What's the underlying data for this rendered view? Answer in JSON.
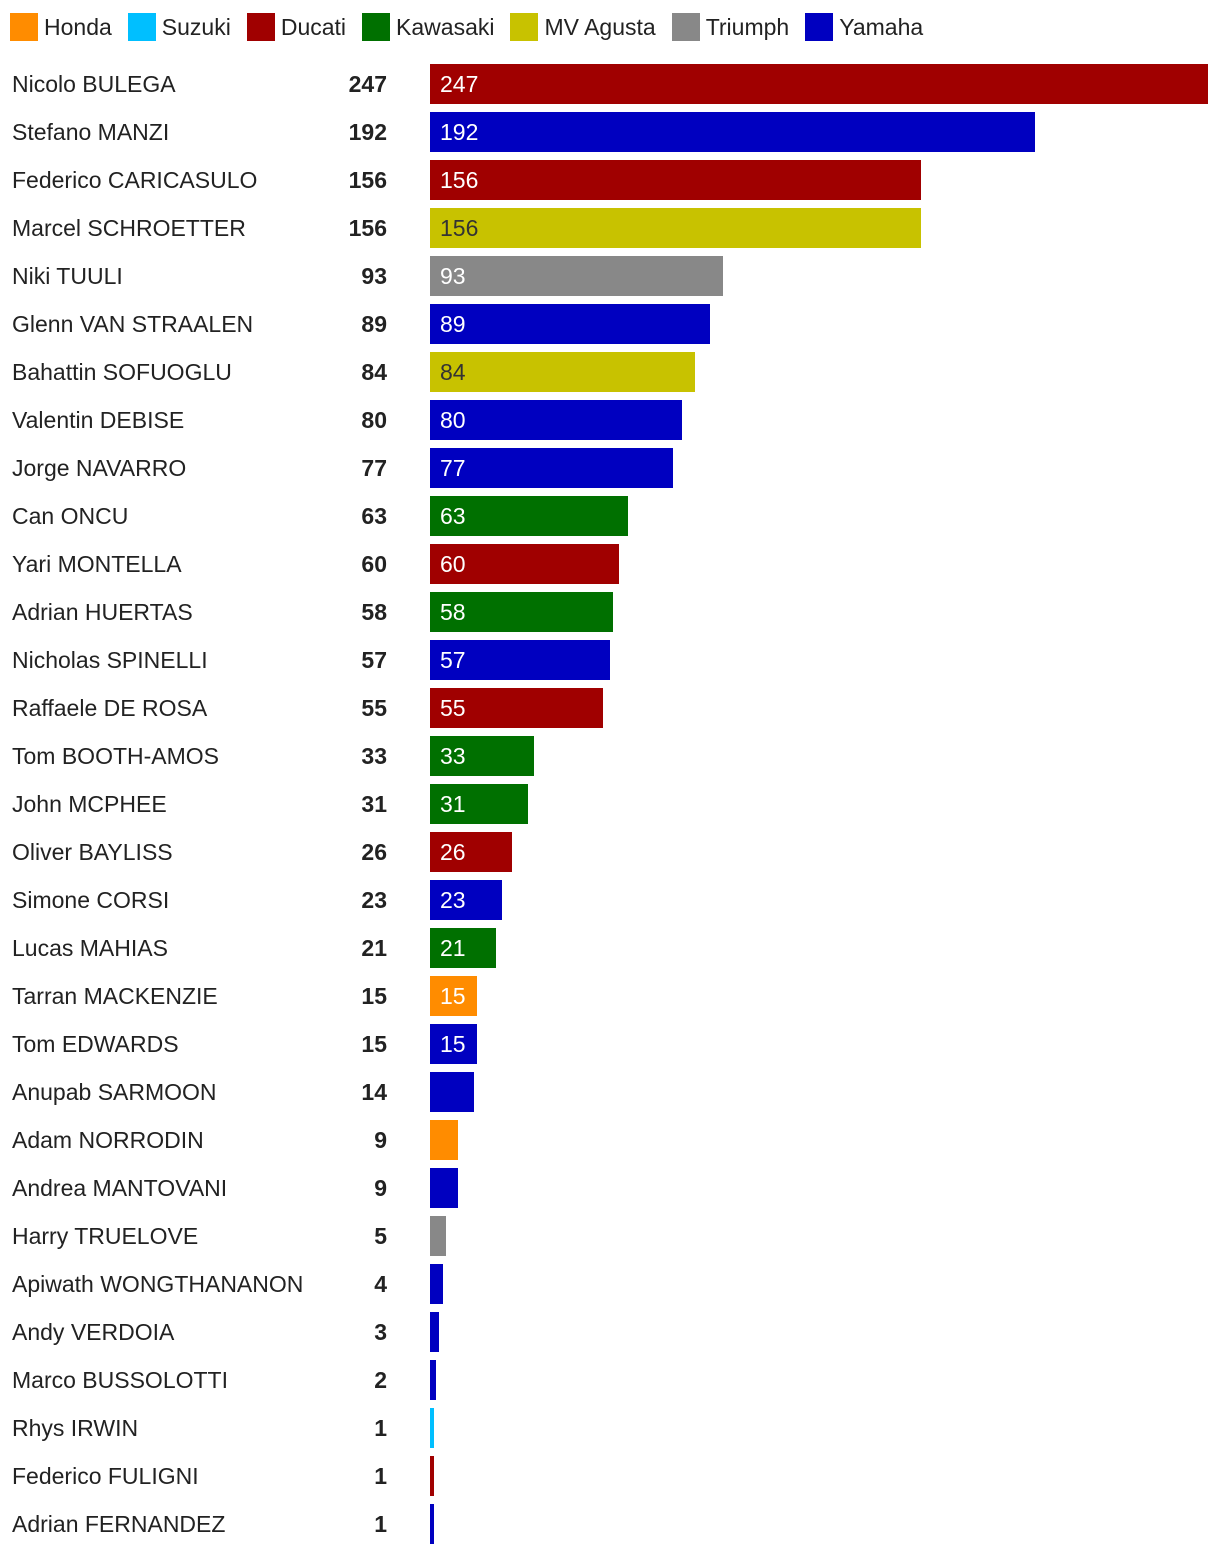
{
  "chart_data": {
    "type": "bar",
    "orientation": "horizontal",
    "manufacturers": [
      {
        "name": "Honda",
        "color": "#ff8c00"
      },
      {
        "name": "Suzuki",
        "color": "#00bfff"
      },
      {
        "name": "Ducati",
        "color": "#a00000"
      },
      {
        "name": "Kawasaki",
        "color": "#007000"
      },
      {
        "name": "MV Agusta",
        "color": "#c8c200"
      },
      {
        "name": "Triumph",
        "color": "#888888"
      },
      {
        "name": "Yamaha",
        "color": "#0000c0"
      }
    ],
    "legend_position": "top-left",
    "rows": [
      {
        "name": "Nicolo BULEGA",
        "points": 247,
        "manufacturer": "Ducati",
        "label": "247"
      },
      {
        "name": "Stefano MANZI",
        "points": 192,
        "manufacturer": "Yamaha",
        "label": "192"
      },
      {
        "name": "Federico CARICASULO",
        "points": 156,
        "manufacturer": "Ducati",
        "label": "156"
      },
      {
        "name": "Marcel SCHROETTER",
        "points": 156,
        "manufacturer": "MV Agusta",
        "label": "156"
      },
      {
        "name": "Niki TUULI",
        "points": 93,
        "manufacturer": "Triumph",
        "label": "93"
      },
      {
        "name": "Glenn VAN STRAALEN",
        "points": 89,
        "manufacturer": "Yamaha",
        "label": "89"
      },
      {
        "name": "Bahattin SOFUOGLU",
        "points": 84,
        "manufacturer": "MV Agusta",
        "label": "84"
      },
      {
        "name": "Valentin DEBISE",
        "points": 80,
        "manufacturer": "Yamaha",
        "label": "80"
      },
      {
        "name": "Jorge NAVARRO",
        "points": 77,
        "manufacturer": "Yamaha",
        "label": "77"
      },
      {
        "name": "Can ONCU",
        "points": 63,
        "manufacturer": "Kawasaki",
        "label": "63"
      },
      {
        "name": "Yari MONTELLA",
        "points": 60,
        "manufacturer": "Ducati",
        "label": "60"
      },
      {
        "name": "Adrian HUERTAS",
        "points": 58,
        "manufacturer": "Kawasaki",
        "label": "58"
      },
      {
        "name": "Nicholas SPINELLI",
        "points": 57,
        "manufacturer": "Yamaha",
        "label": "57"
      },
      {
        "name": "Raffaele DE ROSA",
        "points": 55,
        "manufacturer": "Ducati",
        "label": "55"
      },
      {
        "name": "Tom BOOTH-AMOS",
        "points": 33,
        "manufacturer": "Kawasaki",
        "label": "33"
      },
      {
        "name": "John MCPHEE",
        "points": 31,
        "manufacturer": "Kawasaki",
        "label": "31"
      },
      {
        "name": "Oliver BAYLISS",
        "points": 26,
        "manufacturer": "Ducati",
        "label": "26"
      },
      {
        "name": "Simone CORSI",
        "points": 23,
        "manufacturer": "Yamaha",
        "label": "23"
      },
      {
        "name": "Lucas MAHIAS",
        "points": 21,
        "manufacturer": "Kawasaki",
        "label": "21"
      },
      {
        "name": "Tarran MACKENZIE",
        "points": 15,
        "manufacturer": "Honda",
        "label": "15"
      },
      {
        "name": "Tom EDWARDS",
        "points": 15,
        "manufacturer": "Yamaha",
        "label": "15"
      },
      {
        "name": "Anupab SARMOON",
        "points": 14,
        "manufacturer": "Yamaha",
        "label": ""
      },
      {
        "name": "Adam NORRODIN",
        "points": 9,
        "manufacturer": "Honda",
        "label": ""
      },
      {
        "name": "Andrea MANTOVANI",
        "points": 9,
        "manufacturer": "Yamaha",
        "label": ""
      },
      {
        "name": "Harry TRUELOVE",
        "points": 5,
        "manufacturer": "Triumph",
        "label": ""
      },
      {
        "name": "Apiwath WONGTHANANON",
        "points": 4,
        "manufacturer": "Yamaha",
        "label": ""
      },
      {
        "name": "Andy VERDOIA",
        "points": 3,
        "manufacturer": "Yamaha",
        "label": ""
      },
      {
        "name": "Marco BUSSOLOTTI",
        "points": 2,
        "manufacturer": "Yamaha",
        "label": ""
      },
      {
        "name": "Rhys IRWIN",
        "points": 1,
        "manufacturer": "Suzuki",
        "label": ""
      },
      {
        "name": "Federico FULIGNI",
        "points": 1,
        "manufacturer": "Ducati",
        "label": ""
      },
      {
        "name": "Adrian FERNANDEZ",
        "points": 1,
        "manufacturer": "Yamaha",
        "label": ""
      }
    ],
    "xlim": [
      0,
      247
    ],
    "grid": false
  }
}
